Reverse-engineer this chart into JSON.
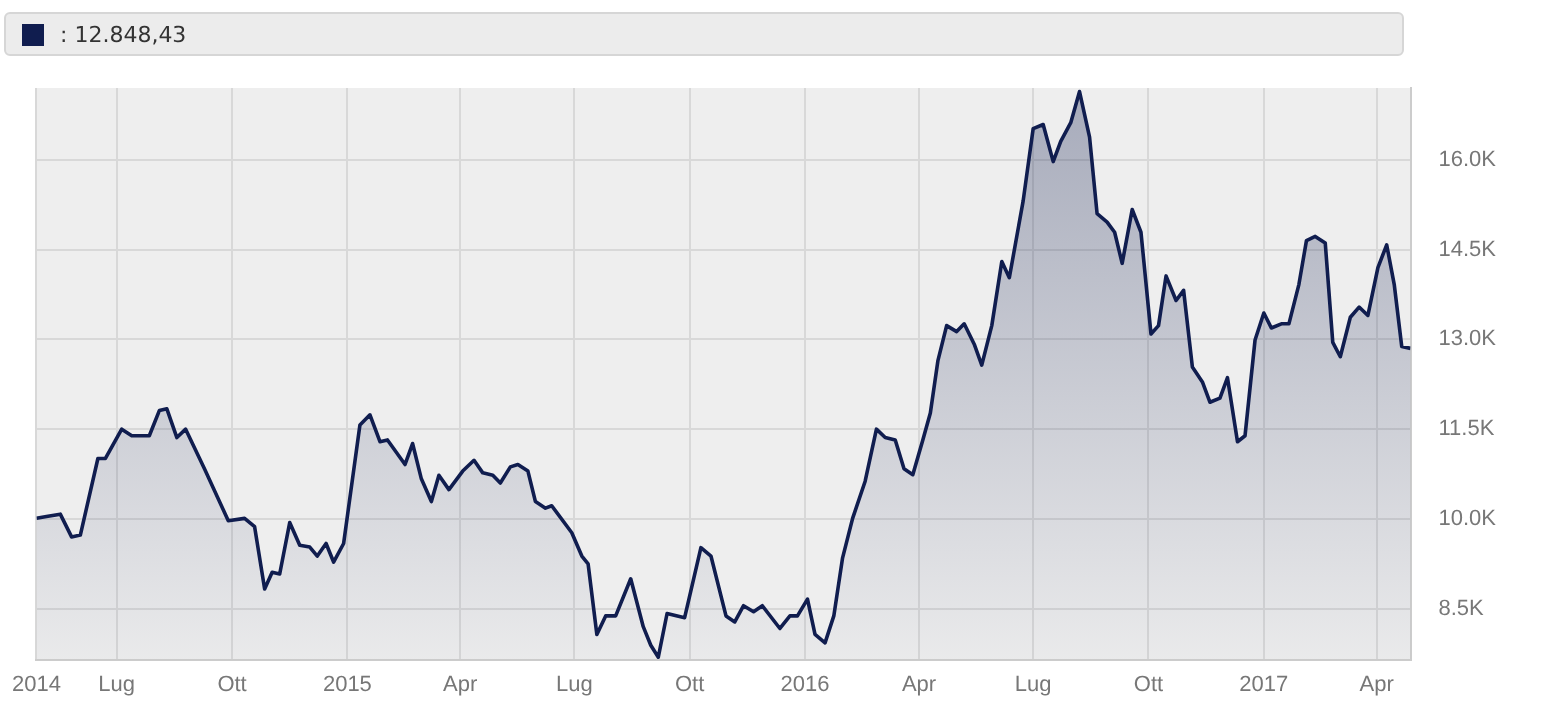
{
  "chart_data": {
    "type": "area",
    "annotations": [
      ": 12.848,43"
    ],
    "x": [
      "2014-04-28",
      "2014-05-06",
      "2014-05-17",
      "2014-05-26",
      "2014-06-02",
      "2014-06-16",
      "2014-06-22",
      "2014-07-05",
      "2014-07-13",
      "2014-07-27",
      "2014-08-04",
      "2014-08-10",
      "2014-08-18",
      "2014-08-25",
      "2014-09-09",
      "2014-09-28",
      "2014-10-11",
      "2014-10-19",
      "2014-10-27",
      "2014-11-02",
      "2014-11-08",
      "2014-11-16",
      "2014-11-24",
      "2014-12-02",
      "2014-12-08",
      "2014-12-15",
      "2014-12-21",
      "2014-12-29",
      "2015-01-11",
      "2015-01-19",
      "2015-01-27",
      "2015-02-02",
      "2015-02-16",
      "2015-02-22",
      "2015-03-01",
      "2015-03-09",
      "2015-03-15",
      "2015-03-23",
      "2015-04-03",
      "2015-04-12",
      "2015-04-19",
      "2015-04-27",
      "2015-05-03",
      "2015-05-11",
      "2015-05-17",
      "2015-05-25",
      "2015-05-31",
      "2015-06-08",
      "2015-06-13",
      "2015-06-29",
      "2015-07-07",
      "2015-07-12",
      "2015-07-19",
      "2015-07-26",
      "2015-08-03",
      "2015-08-15",
      "2015-08-25",
      "2015-08-31",
      "2015-09-06",
      "2015-09-13",
      "2015-09-27",
      "2015-10-10",
      "2015-10-18",
      "2015-10-30",
      "2015-11-06",
      "2015-11-13",
      "2015-11-21",
      "2015-11-28",
      "2015-12-12",
      "2015-12-20",
      "2015-12-26",
      "2016-01-03",
      "2016-01-09",
      "2016-01-17",
      "2016-01-24",
      "2016-01-31",
      "2016-02-08",
      "2016-02-18",
      "2016-02-27",
      "2016-03-05",
      "2016-03-13",
      "2016-03-20",
      "2016-03-27",
      "2016-04-04",
      "2016-04-10",
      "2016-04-16",
      "2016-04-23",
      "2016-05-01",
      "2016-05-07",
      "2016-05-15",
      "2016-05-21",
      "2016-05-29",
      "2016-06-06",
      "2016-06-12",
      "2016-06-23",
      "2016-07-01",
      "2016-07-09",
      "2016-07-17",
      "2016-07-23",
      "2016-07-31",
      "2016-08-07",
      "2016-08-15",
      "2016-08-21",
      "2016-08-29",
      "2016-09-04",
      "2016-09-10",
      "2016-09-18",
      "2016-09-25",
      "2016-10-03",
      "2016-10-09",
      "2016-10-15",
      "2016-10-23",
      "2016-10-29",
      "2016-11-05",
      "2016-11-13",
      "2016-11-19",
      "2016-11-27",
      "2016-12-03",
      "2016-12-11",
      "2016-12-17",
      "2016-12-25",
      "2017-01-01",
      "2017-01-07",
      "2017-01-15",
      "2017-01-21",
      "2017-01-29",
      "2017-02-04",
      "2017-02-11",
      "2017-02-19",
      "2017-02-25",
      "2017-03-03",
      "2017-03-11",
      "2017-03-18",
      "2017-03-25",
      "2017-04-02",
      "2017-04-09",
      "2017-04-15",
      "2017-04-21",
      "2017-04-28"
    ],
    "series": [
      {
        "color": "#101d4f",
        "values": [
          10010,
          10040,
          10080,
          9700,
          9730,
          11010,
          11010,
          11500,
          11390,
          11390,
          11810,
          11840,
          11360,
          11500,
          10840,
          9970,
          10010,
          9870,
          8830,
          9110,
          9080,
          9940,
          9560,
          9530,
          9380,
          9590,
          9280,
          9590,
          11570,
          11740,
          11290,
          11320,
          10910,
          11260,
          10670,
          10290,
          10730,
          10490,
          10800,
          10980,
          10770,
          10730,
          10600,
          10870,
          10910,
          10800,
          10290,
          10180,
          10220,
          9770,
          9380,
          9250,
          8070,
          8380,
          8380,
          9000,
          8200,
          7890,
          7690,
          8420,
          8350,
          9520,
          9380,
          8380,
          8280,
          8550,
          8450,
          8550,
          8170,
          8380,
          8380,
          8660,
          8070,
          7930,
          8380,
          9350,
          10010,
          10630,
          11500,
          11360,
          11320,
          10840,
          10740,
          11320,
          11770,
          12640,
          13230,
          13130,
          13260,
          12920,
          12570,
          13230,
          14300,
          14030,
          15310,
          16520,
          16590,
          15970,
          16310,
          16620,
          17140,
          16380,
          15100,
          14960,
          14790,
          14270,
          15170,
          14790,
          13090,
          13230,
          14060,
          13650,
          13820,
          12540,
          12290,
          11950,
          12020,
          12360,
          11290,
          11390,
          12990,
          13440,
          13190,
          13260,
          13260,
          13920,
          14650,
          14720,
          14610,
          12950,
          12710,
          13370,
          13540,
          13400,
          14200,
          14580,
          13920,
          12880,
          12850
        ]
      }
    ],
    "xlim": [
      "2014-04-28",
      "2017-04-28"
    ],
    "xticks": [
      {
        "value": "2014-04-28",
        "label": "2014"
      },
      {
        "value": "2014-07-01",
        "label": "Lug"
      },
      {
        "value": "2014-10-01",
        "label": "Ott"
      },
      {
        "value": "2015-01-01",
        "label": "2015"
      },
      {
        "value": "2015-04-01",
        "label": "Apr"
      },
      {
        "value": "2015-07-01",
        "label": "Lug"
      },
      {
        "value": "2015-10-01",
        "label": "Ott"
      },
      {
        "value": "2016-01-01",
        "label": "2016"
      },
      {
        "value": "2016-04-01",
        "label": "Apr"
      },
      {
        "value": "2016-07-01",
        "label": "Lug"
      },
      {
        "value": "2016-10-01",
        "label": "Ott"
      },
      {
        "value": "2017-01-01",
        "label": "2017"
      },
      {
        "value": "2017-04-01",
        "label": "Apr"
      }
    ],
    "ylim": [
      7650,
      17200
    ],
    "yticks": [
      {
        "value": 8500,
        "label": "8.5K"
      },
      {
        "value": 10000,
        "label": "10.0K"
      },
      {
        "value": 11500,
        "label": "11.5K"
      },
      {
        "value": 13000,
        "label": "13.0K"
      },
      {
        "value": 14500,
        "label": "14.5K"
      },
      {
        "value": 16000,
        "label": "16.0K"
      }
    ],
    "grid": true,
    "legend": false
  }
}
